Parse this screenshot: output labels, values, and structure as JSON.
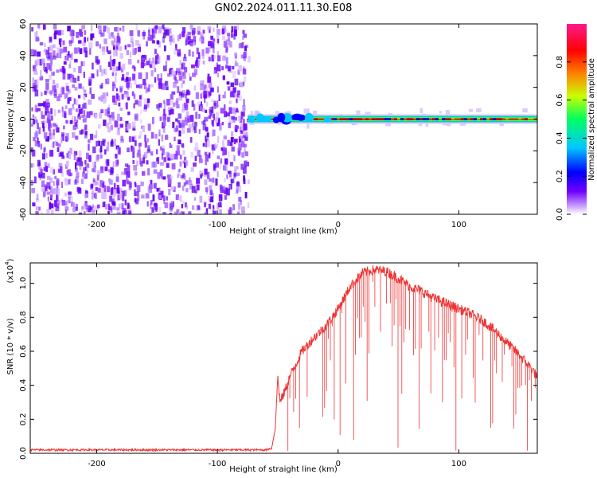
{
  "title": "GN02.2024.011.11.30.E08",
  "chart_data": [
    {
      "type": "heatmap",
      "name": "spectrogram",
      "xlabel": "Height of straight line (km)",
      "ylabel": "Frequency (Hz)",
      "xlim": [
        -255,
        165
      ],
      "ylim": [
        -60,
        60
      ],
      "xticks": [
        -200,
        -100,
        0,
        100
      ],
      "yticks": [
        -60,
        -40,
        -20,
        0,
        20,
        40,
        60
      ],
      "noise_region_x": [
        -255,
        -75
      ],
      "signal_band_x": [
        -75,
        165
      ],
      "signal_band_center_hz": 0,
      "colorbar": {
        "label": "Normalized spectral amplitude",
        "range": [
          0.0,
          1.0
        ],
        "ticks": [
          0.0,
          0.2,
          0.4,
          0.6,
          0.8
        ],
        "tick_labels": [
          "0.0",
          "0.2",
          "0.4",
          "0.6",
          "0.8"
        ],
        "colors": [
          "#ffffff",
          "#b06cff",
          "#6000ff",
          "#0000ff",
          "#00c8ff",
          "#00ff60",
          "#c8ff00",
          "#ff8000",
          "#ff0000",
          "#ff1a8c"
        ]
      }
    },
    {
      "type": "line",
      "name": "snr",
      "xlabel": "Height of straight line (km)",
      "ylabel": "SNR (10 * v/v)",
      "scale_label": "(x10",
      "scale_exponent": "4",
      "scale_close": ")",
      "xlim": [
        -255,
        165
      ],
      "ylim": [
        0.0,
        1.12
      ],
      "xticks": [
        -200,
        -100,
        0,
        100
      ],
      "yticks": [
        0.0,
        0.2,
        0.4,
        0.6,
        0.8,
        1.0
      ],
      "ytick_labels": [
        "0.0",
        "0.2",
        "0.4",
        "0.6",
        "0.8",
        "1.0"
      ],
      "color": "#ee3333",
      "x": [
        -255,
        -200,
        -100,
        -60,
        -55,
        -52,
        -50,
        -48,
        -45,
        -40,
        -30,
        -20,
        -10,
        0,
        10,
        20,
        30,
        40,
        50,
        60,
        70,
        80,
        90,
        100,
        110,
        120,
        130,
        140,
        150,
        160,
        165
      ],
      "y": [
        0.02,
        0.02,
        0.02,
        0.02,
        0.03,
        0.15,
        0.45,
        0.3,
        0.35,
        0.45,
        0.6,
        0.68,
        0.75,
        0.85,
        0.98,
        1.06,
        1.08,
        1.07,
        1.03,
        0.98,
        0.95,
        0.91,
        0.88,
        0.85,
        0.82,
        0.78,
        0.72,
        0.65,
        0.58,
        0.5,
        0.45
      ]
    }
  ]
}
